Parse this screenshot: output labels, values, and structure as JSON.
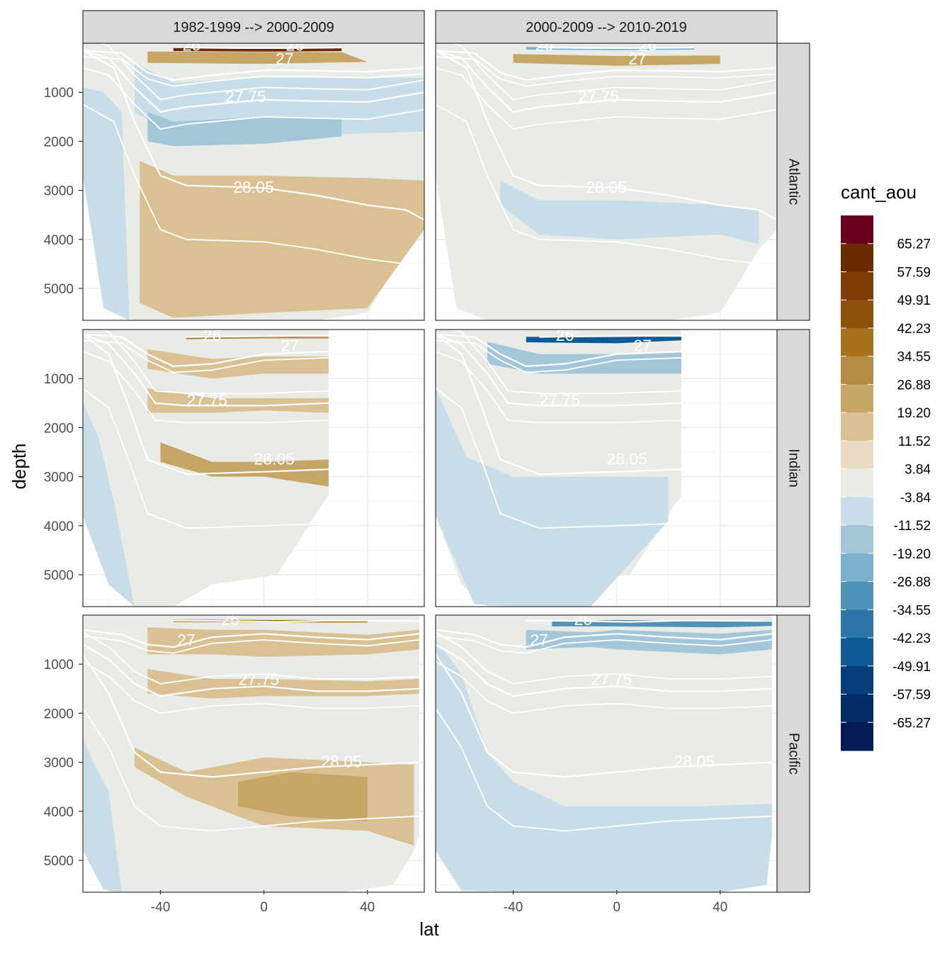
{
  "chart_data": {
    "type": "heatmap",
    "xlabel": "lat",
    "ylabel": "depth",
    "x_range": [
      -70,
      62
    ],
    "y_range": [
      5650,
      0
    ],
    "x_ticks": [
      "-40",
      "0",
      "40"
    ],
    "y_ticks": [
      "1000",
      "2000",
      "3000",
      "4000",
      "5000"
    ],
    "columns": [
      "1982-1999 --> 2000-2009",
      "2000-2009 --> 2010-2019"
    ],
    "rows": [
      "Atlantic",
      "Indian",
      "Pacific"
    ],
    "contour_labels": [
      "26",
      "27",
      "27.75",
      "28.05"
    ],
    "legend": {
      "title": "cant_aou",
      "breaks": [
        "65.27",
        "57.59",
        "49.91",
        "42.23",
        "34.55",
        "26.88",
        "19.20",
        "11.52",
        "3.84",
        "-3.84",
        "-11.52",
        "-19.20",
        "-26.88",
        "-34.55",
        "-42.23",
        "-49.91",
        "-57.59",
        "-65.27"
      ],
      "colors": [
        "#67001f",
        "#6b2a00",
        "#7f3b08",
        "#8c510a",
        "#a6721e",
        "#b58a45",
        "#c7a567",
        "#d9c194",
        "#e9dcc3",
        "#e9ebe7",
        "#c9dde9",
        "#a3c6d9",
        "#7ab0cc",
        "#4f93b9",
        "#2d76a8",
        "#0f5a94",
        "#053e7a",
        "#022c66",
        "#031a57"
      ]
    }
  }
}
